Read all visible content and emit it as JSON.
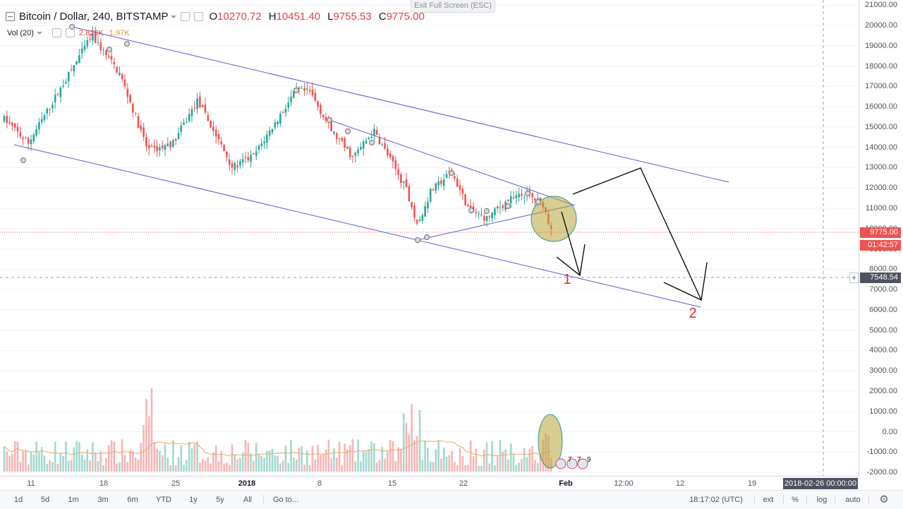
{
  "header": {
    "title": "Bitcoin / Dollar, 240, BITSTAMP",
    "open_label": "O",
    "open": "10270.72",
    "high_label": "H",
    "high": "10451.40",
    "low_label": "L",
    "low": "9755.53",
    "close_label": "C",
    "close": "9775.00",
    "exit_fullscreen": "Exit Full Screen (ESC)"
  },
  "volume_indicator": {
    "name": "Vol (20)",
    "value1": "2.823K",
    "value2": "1.97K"
  },
  "price_axis": {
    "labels": [
      "21000.00",
      "20000.00",
      "19000.00",
      "18000.00",
      "17000.00",
      "16000.00",
      "15000.00",
      "14000.00",
      "13000.00",
      "12000.00",
      "11000.00",
      "10000.00",
      "9000.00",
      "8000.00",
      "7000.00",
      "6000.00",
      "5000.00",
      "4000.00",
      "3000.00",
      "2000.00",
      "1000.00",
      "0.00",
      "-1000.00",
      "-2000.00"
    ],
    "current_price": "9775.00",
    "countdown": "01:42:57",
    "crosshair_price": "7548.54",
    "crosshair_plus": "+"
  },
  "time_axis": {
    "labels": [
      "11",
      "18",
      "25",
      "2018",
      "8",
      "15",
      "22",
      "Feb",
      "12:00",
      "12",
      "19"
    ],
    "crosshair_time": "2018-02-26 00:00:00"
  },
  "bottom_bar": {
    "ranges": [
      "1d",
      "5d",
      "1m",
      "3m",
      "6m",
      "YTD",
      "1y",
      "5y",
      "All"
    ],
    "goto": "Go to...",
    "clock": "18:17:02 (UTC)",
    "ext": "ext",
    "percent": "%",
    "log": "log",
    "auto": "auto"
  },
  "annotations": {
    "label1": "1",
    "label2": "2",
    "event_numbers": [
      "7",
      "7",
      "9"
    ]
  },
  "colors": {
    "up": "#26a69a",
    "down": "#ef5350",
    "trendline": "#5b5bd6",
    "highlight": "#c8b552",
    "annotation_text": "#e0242f",
    "price_tag": "#ef5350",
    "crosshair_tag": "#4c525e"
  },
  "icons": {
    "menu": "hamburger-icon",
    "settings": "gear-icon",
    "settings_box": "settings-box-icon",
    "dropdown": "caret-down-icon"
  }
}
